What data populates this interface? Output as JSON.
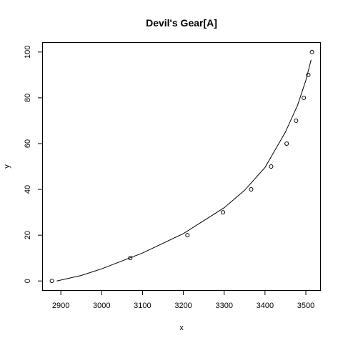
{
  "chart_data": {
    "type": "scatter",
    "title": "Devil's Gear[A]",
    "xlabel": "x",
    "ylabel": "y",
    "xlim": [
      2856,
      3535
    ],
    "ylim": [
      -4,
      104
    ],
    "xticks": [
      2900,
      3000,
      3100,
      3200,
      3300,
      3400,
      3500
    ],
    "yticks": [
      0,
      20,
      40,
      60,
      80,
      100
    ],
    "points": [
      {
        "x": 2878,
        "y": 0
      },
      {
        "x": 3070,
        "y": 10
      },
      {
        "x": 3210,
        "y": 20
      },
      {
        "x": 3297,
        "y": 30
      },
      {
        "x": 3366,
        "y": 40
      },
      {
        "x": 3415,
        "y": 50
      },
      {
        "x": 3453,
        "y": 60
      },
      {
        "x": 3476,
        "y": 70
      },
      {
        "x": 3495,
        "y": 80
      },
      {
        "x": 3506,
        "y": 90
      },
      {
        "x": 3515,
        "y": 100
      }
    ],
    "fit_curve": [
      {
        "x": 2890,
        "y": 0
      },
      {
        "x": 2950,
        "y": 2.4
      },
      {
        "x": 3000,
        "y": 5.3
      },
      {
        "x": 3100,
        "y": 12.2
      },
      {
        "x": 3200,
        "y": 20.7
      },
      {
        "x": 3300,
        "y": 32.0
      },
      {
        "x": 3350,
        "y": 39.6
      },
      {
        "x": 3400,
        "y": 49.6
      },
      {
        "x": 3450,
        "y": 65.0
      },
      {
        "x": 3480,
        "y": 76.9
      },
      {
        "x": 3500,
        "y": 87.6
      },
      {
        "x": 3513,
        "y": 96.6
      }
    ],
    "grid": false,
    "legend": "none"
  }
}
